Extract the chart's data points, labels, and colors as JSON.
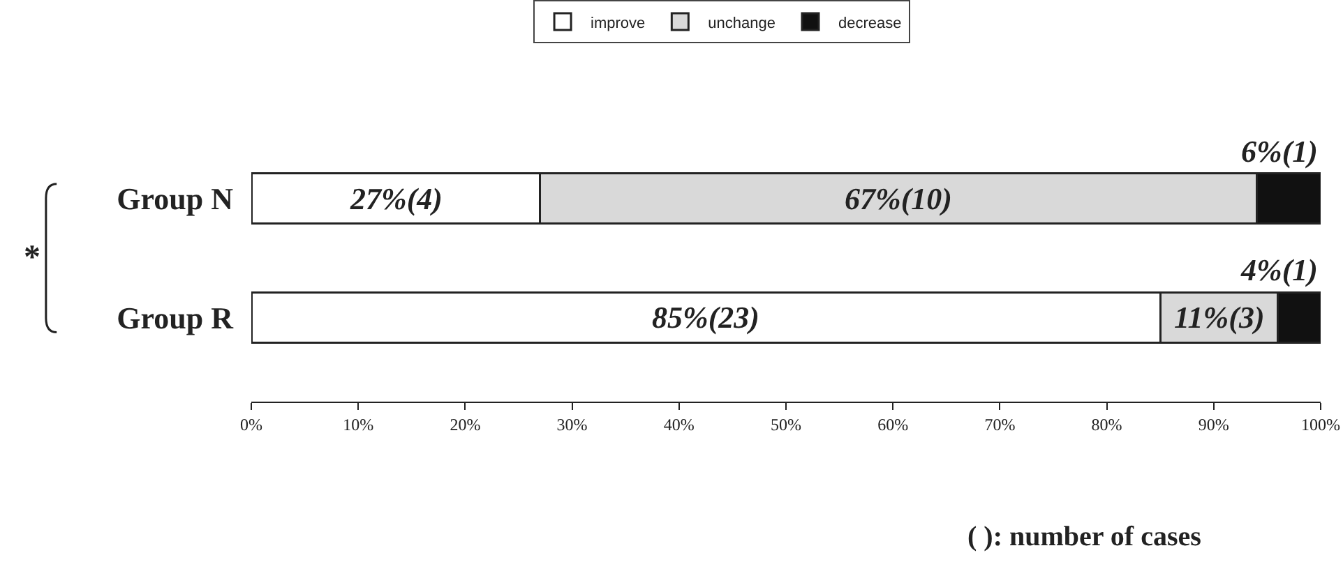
{
  "chart_data": {
    "type": "bar",
    "orientation": "horizontal",
    "stacked": true,
    "categories": [
      "Group N",
      "Group R"
    ],
    "series": [
      {
        "name": "improve",
        "color": "#ffffff",
        "values": [
          27,
          85
        ],
        "value_labels": [
          "27%(4)",
          "85%(23)"
        ]
      },
      {
        "name": "unchange",
        "color": "#d9d9d9",
        "values": [
          67,
          11
        ],
        "value_labels": [
          "67%(10)",
          "11%(3)"
        ]
      },
      {
        "name": "decrease",
        "color": "#111111",
        "values": [
          6,
          4
        ],
        "value_labels": [
          "6%(1)",
          "4%(1)"
        ]
      }
    ],
    "xlim": [
      0,
      100
    ],
    "xticks": [
      {
        "value": 0,
        "label": "0%"
      },
      {
        "value": 10,
        "label": "10%"
      },
      {
        "value": 20,
        "label": "20%"
      },
      {
        "value": 30,
        "label": "30%"
      },
      {
        "value": 40,
        "label": "40%"
      },
      {
        "value": 50,
        "label": "50%"
      },
      {
        "value": 60,
        "label": "60%"
      },
      {
        "value": 70,
        "label": "70%"
      },
      {
        "value": 80,
        "label": "80%"
      },
      {
        "value": 90,
        "label": "90%"
      },
      {
        "value": 100,
        "label": "100%"
      }
    ],
    "legend": "top",
    "annotations": [
      "*",
      "( ): number of cases"
    ]
  }
}
